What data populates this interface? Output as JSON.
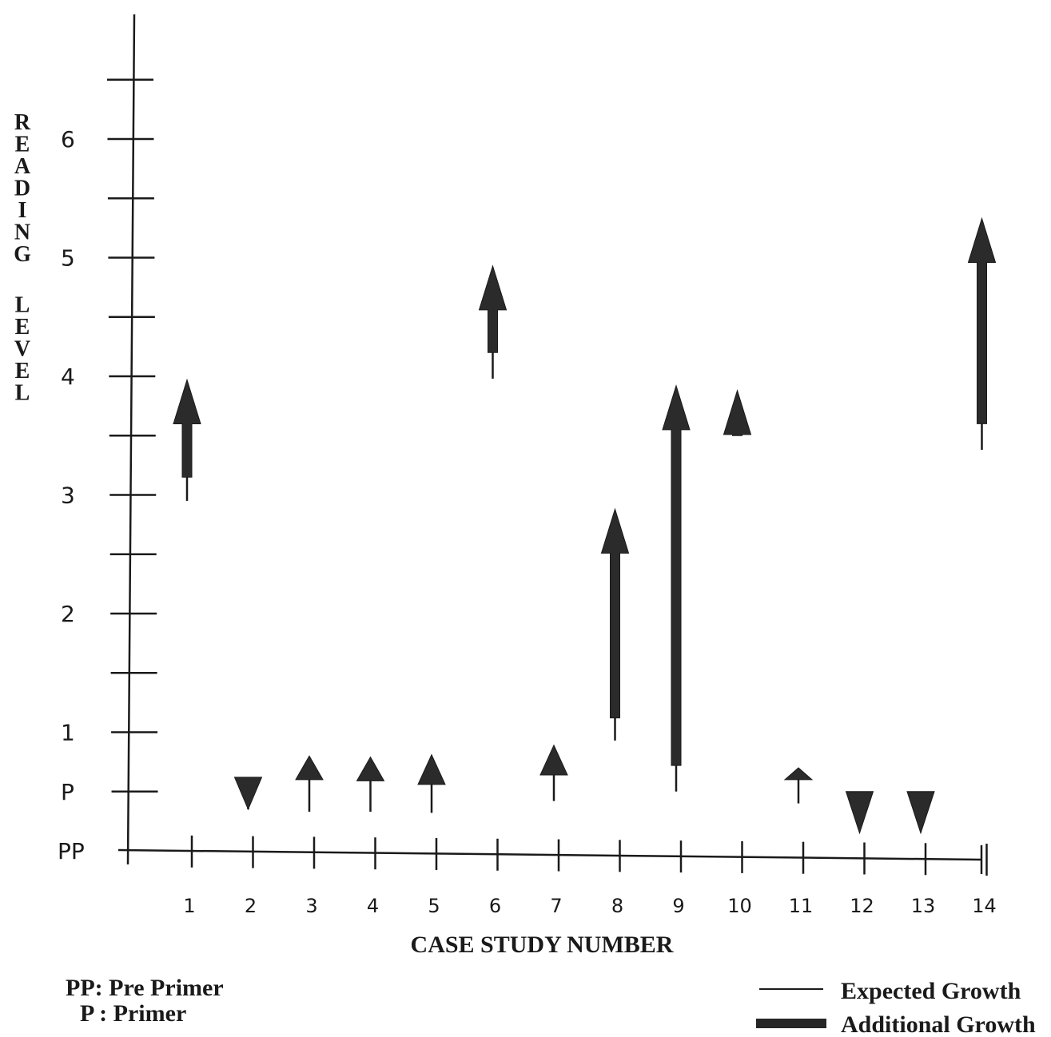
{
  "chart_data": {
    "type": "bar",
    "xlabel": "CASE STUDY NUMBER",
    "ylabel": "READING LEVEL",
    "y_ticks": [
      {
        "value": 0,
        "label": "PP"
      },
      {
        "value": 0.5,
        "label": "P"
      },
      {
        "value": 1,
        "label": "1"
      },
      {
        "value": 2,
        "label": "2"
      },
      {
        "value": 3,
        "label": "3"
      },
      {
        "value": 4,
        "label": "4"
      },
      {
        "value": 5,
        "label": "5"
      },
      {
        "value": 6,
        "label": "6"
      }
    ],
    "ylim": [
      0,
      6.5
    ],
    "categories": [
      "1",
      "2",
      "3",
      "4",
      "5",
      "6",
      "7",
      "8",
      "9",
      "10",
      "11",
      "12",
      "13",
      "14"
    ],
    "series": [
      {
        "name": "Expected Growth",
        "start": [
          2.95,
          0.35,
          0.33,
          0.33,
          0.32,
          3.98,
          0.42,
          0.93,
          0.5,
          3.5,
          0.4,
          0.15,
          0.15,
          3.38
        ],
        "end": [
          3.15,
          0.62,
          0.6,
          0.59,
          0.56,
          4.2,
          0.64,
          1.12,
          0.72,
          3.5,
          0.6,
          0.15,
          0.15,
          3.6
        ]
      },
      {
        "name": "Additional Growth",
        "start": [
          3.15,
          0.62,
          0.6,
          0.59,
          0.56,
          4.2,
          0.64,
          1.12,
          0.72,
          3.5,
          0.6,
          0.5,
          0.5,
          3.6
        ],
        "end": [
          3.97,
          0.35,
          0.8,
          0.79,
          0.81,
          4.93,
          0.89,
          2.88,
          3.92,
          3.88,
          0.7,
          0.15,
          0.15,
          5.33
        ]
      }
    ],
    "legend_placement": "bottom-right",
    "legend": [
      "Expected Growth",
      "Additional Growth"
    ],
    "footnotes": [
      "PP: Pre Primer",
      "P : Primer"
    ],
    "grid": false
  }
}
